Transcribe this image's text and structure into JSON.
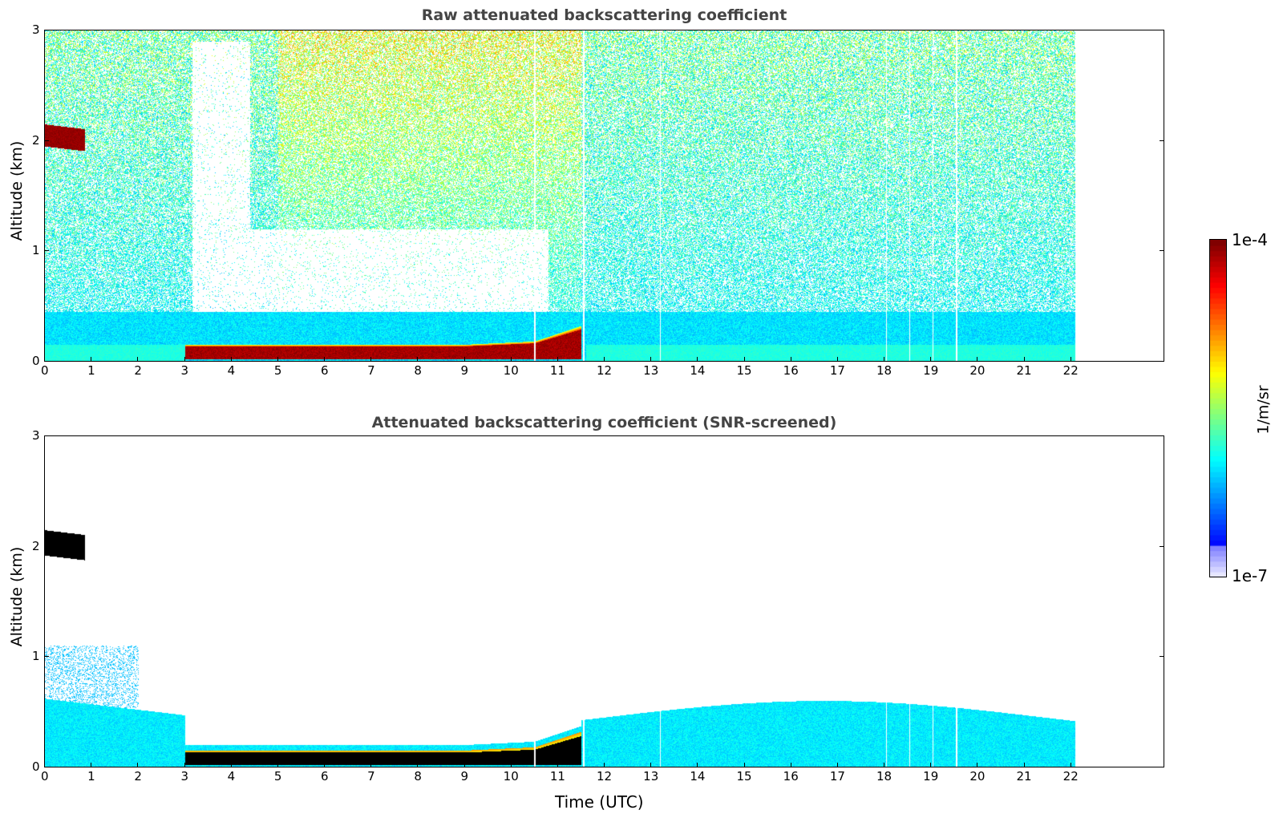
{
  "chart_data": [
    {
      "type": "heatmap",
      "title": "Raw attenuated backscattering coefficient",
      "xlabel": "",
      "ylabel": "Altitude (km)",
      "xlim": [
        0,
        24
      ],
      "ylim": [
        0,
        3
      ],
      "x_ticks": [
        "0",
        "1",
        "2",
        "3",
        "4",
        "5",
        "6",
        "7",
        "8",
        "9",
        "10",
        "11",
        "12",
        "13",
        "14",
        "15",
        "16",
        "17",
        "18",
        "19",
        "20",
        "21",
        "22"
      ],
      "y_ticks": [
        "0",
        "1",
        "2",
        "3"
      ],
      "data_end_time": 22.1,
      "features": [
        {
          "name": "elevated cloud layer",
          "time_start": 0.0,
          "time_end": 0.85,
          "alt_bottom": 1.95,
          "alt_top": 2.15,
          "level": "high"
        },
        {
          "name": "low cloud/fog layer",
          "time_start": 3.0,
          "time_end": 11.5,
          "alt_bottom": 0.02,
          "alt_top": 0.2,
          "level": "high"
        },
        {
          "name": "boundary layer aerosol",
          "time_start": 0.0,
          "time_end": 22.1,
          "alt_bottom": 0.0,
          "alt_top": 0.5,
          "level": "low"
        },
        {
          "name": "background noise",
          "time_start": 0.0,
          "time_end": 22.1,
          "alt_bottom": 0.5,
          "alt_top": 3.0,
          "level": "noise"
        }
      ],
      "gap_times": [
        10.5,
        11.55,
        13.2,
        18.05,
        18.55,
        19.05,
        19.55
      ]
    },
    {
      "type": "heatmap",
      "title": "Attenuated backscattering coefficient (SNR-screened)",
      "xlabel": "Time (UTC)",
      "ylabel": "Altitude (km)",
      "xlim": [
        0,
        24
      ],
      "ylim": [
        0,
        3
      ],
      "x_ticks": [
        "0",
        "1",
        "2",
        "3",
        "4",
        "5",
        "6",
        "7",
        "8",
        "9",
        "10",
        "11",
        "12",
        "13",
        "14",
        "15",
        "16",
        "17",
        "18",
        "19",
        "20",
        "21",
        "22"
      ],
      "y_ticks": [
        "0",
        "1",
        "2",
        "3"
      ],
      "data_end_time": 22.1,
      "features": [
        {
          "name": "elevated cloud layer",
          "time_start": 0.0,
          "time_end": 0.85,
          "alt_bottom": 1.92,
          "alt_top": 2.15,
          "level": "saturated"
        },
        {
          "name": "low cloud/fog layer",
          "time_start": 3.0,
          "time_end": 11.5,
          "alt_bottom": 0.02,
          "alt_top": 0.2,
          "level": "saturated"
        },
        {
          "name": "boundary layer aerosol",
          "time_start": 0.0,
          "time_end": 22.1,
          "alt_bottom": 0.0,
          "alt_top": 0.65,
          "level": "low"
        }
      ],
      "gap_times": [
        10.5,
        11.55,
        13.2,
        18.05,
        18.55,
        19.05,
        19.55
      ]
    }
  ],
  "colorbar": {
    "max_label": "1e-4",
    "min_label": "1e-7",
    "unit_label": "1/m/sr",
    "colormap": "jet",
    "scale": "log",
    "range": [
      1e-07,
      0.0001
    ]
  },
  "colors": {
    "title": "#444444",
    "saturated": "#000000",
    "high": "#8b0000"
  }
}
